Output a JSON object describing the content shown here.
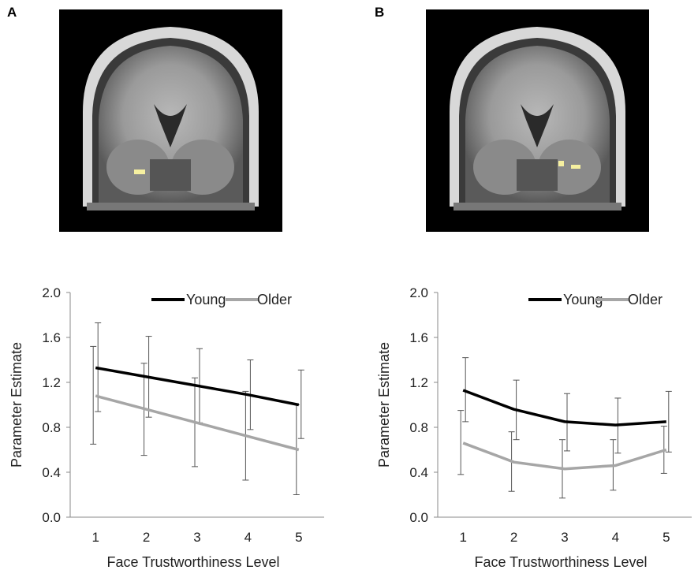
{
  "panels": {
    "a": {
      "letter": "A"
    },
    "b": {
      "letter": "B"
    }
  },
  "colors": {
    "young": "#000000",
    "older": "#a6a6a6",
    "errorbar": "#555555",
    "highlight": "#f6f0a0"
  },
  "chart_data": [
    {
      "type": "line",
      "panel": "A",
      "categories": [
        "1",
        "2",
        "3",
        "4",
        "5"
      ],
      "xlabel": "Face Trustworthiness Level",
      "ylabel": "Parameter Estimate",
      "ylim": [
        0,
        2.0
      ],
      "yticks": [
        "0.0",
        "0.4",
        "0.8",
        "1.2",
        "1.6",
        "2.0"
      ],
      "legend_position": "top-right",
      "series": [
        {
          "name": "Young",
          "values": [
            1.33,
            1.25,
            1.17,
            1.09,
            1.0
          ],
          "err_low": [
            0.94,
            0.89,
            0.84,
            0.78,
            0.7
          ],
          "err_high": [
            1.73,
            1.61,
            1.5,
            1.4,
            1.31
          ]
        },
        {
          "name": "Older",
          "values": [
            1.08,
            0.96,
            0.84,
            0.72,
            0.6
          ],
          "err_low": [
            0.65,
            0.55,
            0.45,
            0.33,
            0.2
          ],
          "err_high": [
            1.52,
            1.37,
            1.24,
            1.12,
            1.0
          ]
        }
      ]
    },
    {
      "type": "line",
      "panel": "B",
      "categories": [
        "1",
        "2",
        "3",
        "4",
        "5"
      ],
      "xlabel": "Face Trustworthiness Level",
      "ylabel": "Parameter Estimate",
      "ylim": [
        0,
        2.0
      ],
      "yticks": [
        "0.0",
        "0.4",
        "0.8",
        "1.2",
        "1.6",
        "2.0"
      ],
      "legend_position": "top-right",
      "series": [
        {
          "name": "Young",
          "values": [
            1.13,
            0.96,
            0.85,
            0.82,
            0.85
          ],
          "err_low": [
            0.85,
            0.69,
            0.59,
            0.57,
            0.58
          ],
          "err_high": [
            1.42,
            1.22,
            1.1,
            1.06,
            1.12
          ]
        },
        {
          "name": "Older",
          "values": [
            0.66,
            0.49,
            0.43,
            0.46,
            0.6
          ],
          "err_low": [
            0.38,
            0.23,
            0.17,
            0.24,
            0.39
          ],
          "err_high": [
            0.95,
            0.76,
            0.69,
            0.69,
            0.81
          ]
        }
      ]
    }
  ]
}
